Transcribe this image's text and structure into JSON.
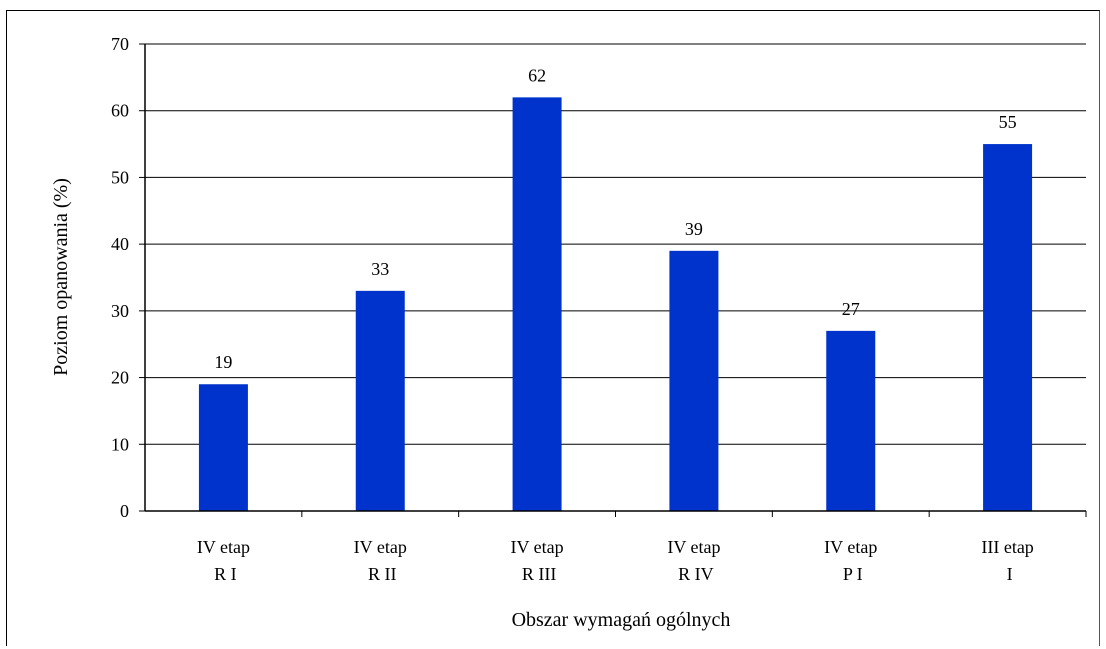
{
  "chart_data": {
    "type": "bar",
    "categories": [
      [
        "IV etap",
        "R I"
      ],
      [
        "IV etap",
        "R II"
      ],
      [
        "IV etap",
        "R III"
      ],
      [
        "IV etap",
        "R IV"
      ],
      [
        "IV etap",
        "P I"
      ],
      [
        "III etap",
        "I"
      ]
    ],
    "values": [
      19,
      33,
      62,
      39,
      27,
      55
    ],
    "data_labels": [
      "19",
      "33",
      "62",
      "39",
      "27",
      "55"
    ],
    "xlabel": "Obszar wymagań ogólnych",
    "ylabel": "Poziom opanowania (%)",
    "ylim": [
      0,
      70
    ],
    "yticks": [
      "0",
      "10",
      "20",
      "30",
      "40",
      "50",
      "60",
      "70"
    ],
    "grid": true,
    "bar_color": "#0033CC"
  }
}
